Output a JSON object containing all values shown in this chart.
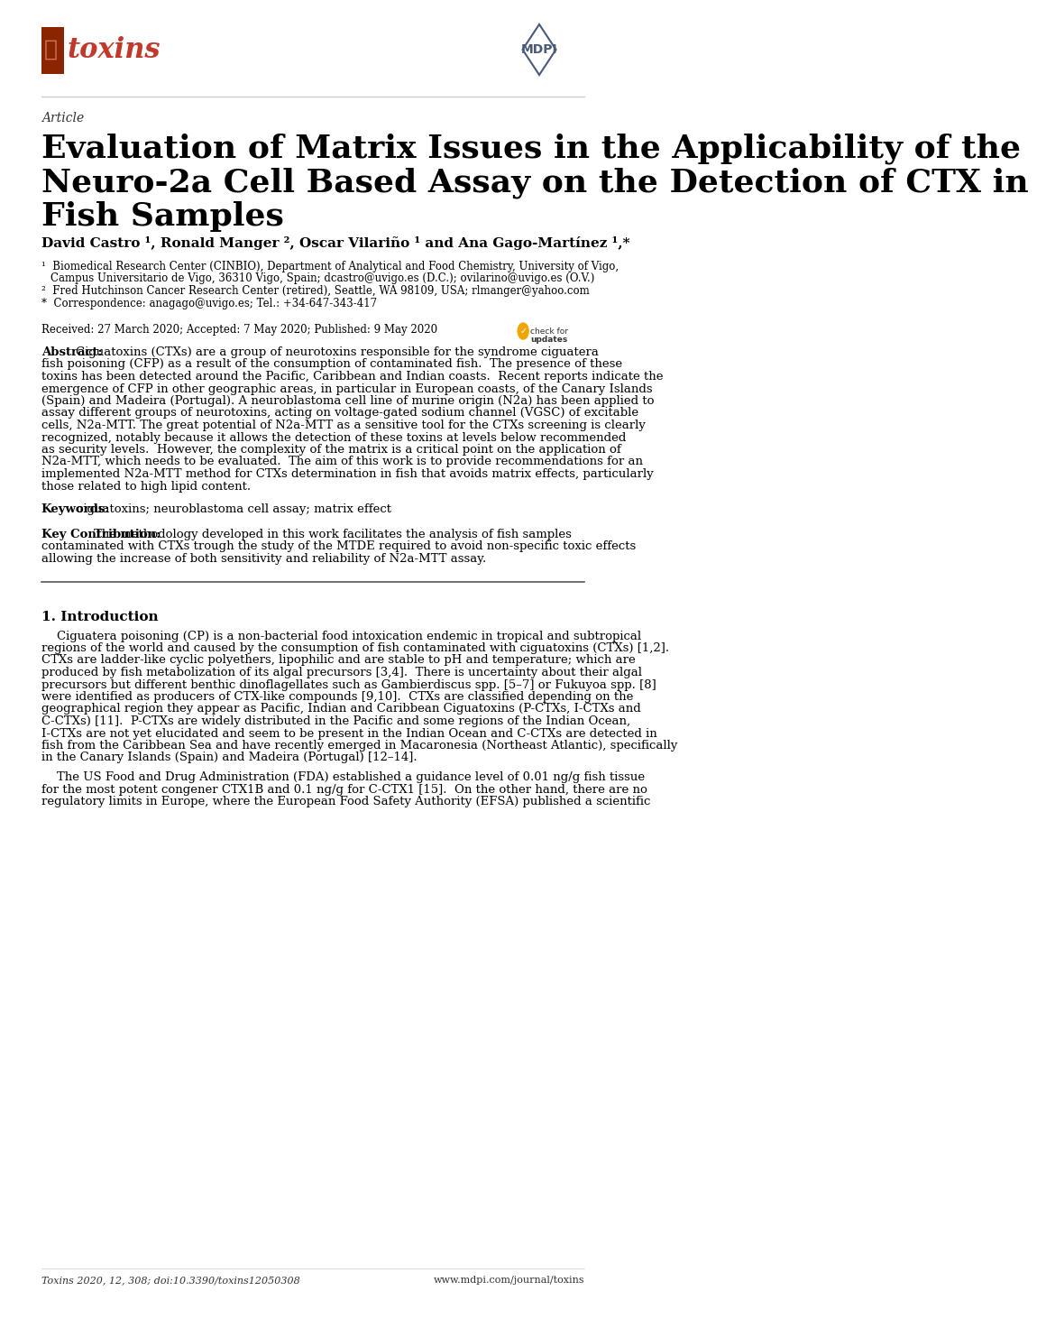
{
  "bg_color": "#ffffff",
  "text_color": "#000000",
  "link_color": "#2255aa",
  "journal_name": "toxins",
  "journal_color": "#c0392b",
  "journal_box_color": "#a0522d",
  "article_label": "Article",
  "title": "Evaluation of Matrix Issues in the Applicability of the\nNeuro-2a Cell Based Assay on the Detection of CTX in\nFish Samples",
  "authors": "David Castro ¹, Ronald Manger ², Oscar Vilariño ¹ and Ana Gago-Martínez ¹,*",
  "affil1": "¹  Biomedical Research Center (CINBIO), Department of Analytical and Food Chemistry, University of Vigo,\n    Campus Universitario de Vigo, 36310 Vigo, Spain; dcastro@uvigo.es (D.C.); ovilarino@uvigo.es (O.V.)",
  "affil2": "²  Fred Hutchinson Cancer Research Center (retired), Seattle, WA 98109, USA; rlmanger@yahoo.com",
  "affil3": "*  Correspondence: anagago@uvigo.es; Tel.: +34-647-343-417",
  "received": "Received: 27 March 2020; Accepted: 7 May 2020; Published: 9 May 2020",
  "abstract_label": "Abstract:",
  "abstract_text": "Ciguatoxins (CTXs) are a group of neurotoxins responsible for the syndrome ciguatera fish poisoning (CFP) as a result of the consumption of contaminated fish.  The presence of these toxins has been detected around the Pacific, Caribbean and Indian coasts.  Recent reports indicate the emergence of CFP in other geographic areas, in particular in European coasts, of the Canary Islands (Spain) and Madeira (Portugal). A neuroblastoma cell line of murine origin (N2a) has been applied to assay different groups of neurotoxins, acting on voltage-gated sodium channel (VGSC) of excitable cells, N2a-MTT. The great potential of N2a-MTT as a sensitive tool for the CTXs screening is clearly recognized, notably because it allows the detection of these toxins at levels below recommended as security levels.  However, the complexity of the matrix is a critical point on the application of N2a-MTT, which needs to be evaluated.  The aim of this work is to provide recommendations for an implemented N2a-MTT method for CTXs determination in fish that avoids matrix effects, particularly those related to high lipid content.",
  "keywords_label": "Keywords:",
  "keywords_text": "ciguatoxins; neuroblastoma cell assay; matrix effect",
  "keycontrib_label": "Key Contribution:",
  "keycontrib_text": "The methodology developed in this work facilitates the analysis of fish samples contaminated with CTXs trough the study of the MTDE required to avoid non-specific toxic effects allowing the increase of both sensitivity and reliability of N2a-MTT assay.",
  "section1_title": "1. Introduction",
  "intro_para1": "Ciguatera poisoning (CP) is a non-bacterial food intoxication endemic in tropical and subtropical regions of the world and caused by the consumption of fish contaminated with ciguatoxins (CTXs) [1,2]. CTXs are ladder-like cyclic polyethers, lipophilic and are stable to pH and temperature; which are produced by fish metabolization of its algal precursors [3,4].  There is uncertainty about their algal precursors but different benthic dinoflagellates such as Gambierdiscus spp. [5–7] or Fukuyoa spp. [8] were identified as producers of CTX-like compounds [9,10].  CTXs are classified depending on the geographical region they appear as Pacific, Indian and Caribbean Ciguatoxins (P-CTXs, I-CTXs and C-CTXs) [11].  P-CTXs are widely distributed in the Pacific and some regions of the Indian Ocean, I-CTXs are not yet elucidated and seem to be present in the Indian Ocean and C-CTXs are detected in fish from the Caribbean Sea and have recently emerged in Macaronesia (Northeast Atlantic), specifically in the Canary Islands (Spain) and Madeira (Portugal) [12–14].",
  "intro_para2": "The US Food and Drug Administration (FDA) established a guidance level of 0.01 ng/g fish tissue for the most potent congener CTX1B and 0.1 ng/g for C-CTX1 [15].  On the other hand, there are no regulatory limits in Europe, where the European Food Safety Authority (EFSA) published a scientific",
  "footer_left": "Toxins 2020, 12, 308; doi:10.3390/toxins12050308",
  "footer_right": "www.mdpi.com/journal/toxins"
}
